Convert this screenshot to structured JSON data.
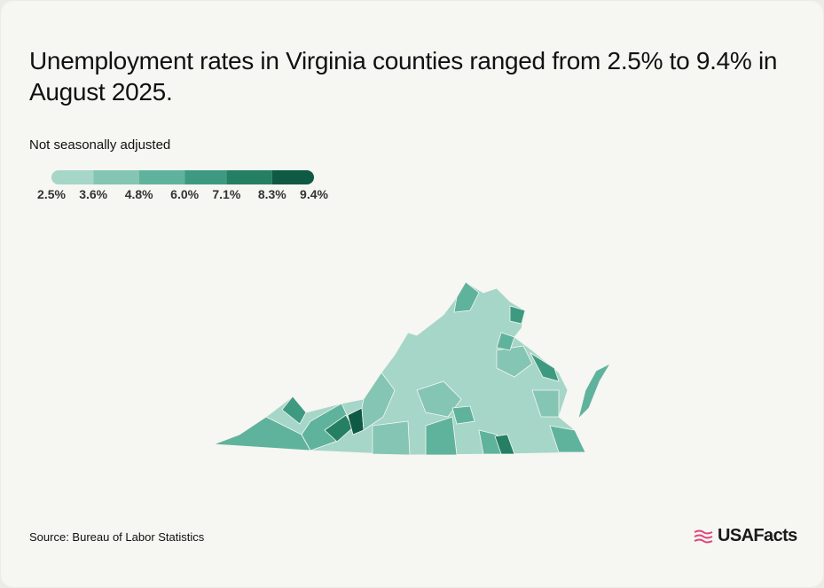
{
  "header": {
    "title": "Unemployment rates in Virginia counties ranged from 2.5% to 9.4% in August 2025.",
    "subtitle": "Not seasonally adjusted"
  },
  "legend": {
    "ticks": [
      {
        "value": 2.5,
        "label": "2.5%"
      },
      {
        "value": 3.6,
        "label": "3.6%"
      },
      {
        "value": 4.8,
        "label": "4.8%"
      },
      {
        "value": 6.0,
        "label": "6.0%"
      },
      {
        "value": 7.1,
        "label": "7.1%"
      },
      {
        "value": 8.3,
        "label": "8.3%"
      },
      {
        "value": 9.4,
        "label": "9.4%"
      }
    ],
    "colors": [
      "#a6d6c8",
      "#84c5b3",
      "#5fb39c",
      "#3d9a80",
      "#257f63",
      "#0e5a44"
    ]
  },
  "source": "Source: Bureau of Labor Statistics",
  "logo": "USAFacts"
}
